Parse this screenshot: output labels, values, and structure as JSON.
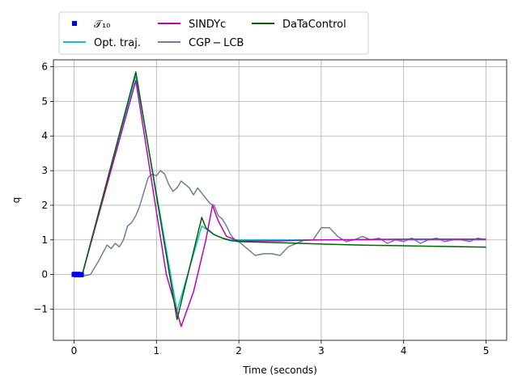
{
  "chart_data": {
    "type": "line",
    "title": "",
    "xlabel": "Time (seconds)",
    "ylabel": "q",
    "xlim": [
      -0.25,
      5.25
    ],
    "ylim": [
      -1.9,
      6.2
    ],
    "xticks": [
      0,
      1,
      2,
      3,
      4,
      5
    ],
    "xtick_labels": [
      "0",
      "1",
      "2",
      "3",
      "4",
      "5"
    ],
    "yticks": [
      -1,
      0,
      1,
      2,
      3,
      4,
      5,
      6
    ],
    "ytick_labels": [
      "−1",
      "0",
      "1",
      "2",
      "3",
      "4",
      "5",
      "6"
    ],
    "grid": true,
    "legend": {
      "placement": "top-left-outside",
      "ncol": 3
    },
    "series": [
      {
        "name": "𝒯₁₀",
        "kind": "markers",
        "color": "#0000ee",
        "x": [
          0.0,
          0.01,
          0.02,
          0.03,
          0.04,
          0.05,
          0.06,
          0.07,
          0.08,
          0.09
        ],
        "y": [
          0.0,
          0.01,
          0.0,
          -0.01,
          0.0,
          0.01,
          0.0,
          0.0,
          -0.01,
          0.0
        ]
      },
      {
        "name": "Opt. traj.",
        "kind": "line",
        "color": "#17becf",
        "x": [
          0.0,
          0.1,
          0.75,
          1.25,
          1.55,
          1.7,
          1.8,
          1.9,
          2.0,
          2.5,
          3.0,
          3.5,
          4.0,
          4.5,
          5.0
        ],
        "y": [
          0.0,
          0.0,
          5.75,
          -1.05,
          1.4,
          1.15,
          1.05,
          1.0,
          1.0,
          1.0,
          1.0,
          1.0,
          1.0,
          1.0,
          1.0
        ]
      },
      {
        "name": "SINDYc",
        "kind": "line",
        "color": "#bf00bf",
        "x": [
          0.0,
          0.1,
          0.75,
          1.12,
          1.3,
          1.45,
          1.6,
          1.68,
          1.75,
          1.85,
          2.0,
          2.5,
          3.0,
          4.0,
          5.0
        ],
        "y": [
          0.0,
          0.0,
          5.6,
          0.0,
          -1.5,
          -0.5,
          1.0,
          2.0,
          1.55,
          1.1,
          0.97,
          0.97,
          1.0,
          1.02,
          1.02
        ]
      },
      {
        "name": "CGP − LCB",
        "kind": "line",
        "color": "#708090",
        "x": [
          0.0,
          0.05,
          0.1,
          0.2,
          0.3,
          0.4,
          0.45,
          0.5,
          0.55,
          0.6,
          0.65,
          0.7,
          0.75,
          0.8,
          0.85,
          0.9,
          0.95,
          1.0,
          1.05,
          1.1,
          1.15,
          1.2,
          1.25,
          1.3,
          1.35,
          1.4,
          1.45,
          1.5,
          1.55,
          1.6,
          1.65,
          1.7,
          1.75,
          1.8,
          1.85,
          1.9,
          1.95,
          2.0,
          2.1,
          2.2,
          2.3,
          2.4,
          2.5,
          2.6,
          2.7,
          2.8,
          2.9,
          3.0,
          3.1,
          3.2,
          3.3,
          3.4,
          3.5,
          3.6,
          3.7,
          3.8,
          3.9,
          4.0,
          4.1,
          4.2,
          4.3,
          4.4,
          4.5,
          4.6,
          4.7,
          4.8,
          4.9,
          5.0
        ],
        "y": [
          0.0,
          -0.05,
          -0.05,
          0.0,
          0.4,
          0.85,
          0.75,
          0.9,
          0.8,
          1.0,
          1.4,
          1.5,
          1.7,
          2.0,
          2.4,
          2.8,
          2.9,
          2.85,
          3.0,
          2.9,
          2.6,
          2.4,
          2.5,
          2.7,
          2.6,
          2.5,
          2.3,
          2.5,
          2.35,
          2.2,
          2.05,
          2.0,
          1.7,
          1.6,
          1.4,
          1.15,
          1.0,
          0.95,
          0.75,
          0.55,
          0.6,
          0.6,
          0.55,
          0.8,
          0.9,
          1.0,
          1.0,
          1.35,
          1.35,
          1.1,
          0.95,
          1.0,
          1.1,
          1.0,
          1.05,
          0.9,
          1.0,
          0.95,
          1.05,
          0.9,
          1.0,
          1.05,
          0.95,
          1.0,
          1.0,
          0.95,
          1.05,
          1.0
        ]
      },
      {
        "name": "DaTaControl",
        "kind": "line",
        "color": "#006400",
        "x": [
          0.0,
          0.1,
          0.75,
          1.25,
          1.55,
          1.6,
          1.7,
          1.8,
          1.9,
          2.0,
          2.5,
          3.0,
          3.5,
          4.0,
          4.5,
          5.0
        ],
        "y": [
          0.0,
          0.0,
          5.85,
          -1.3,
          1.65,
          1.35,
          1.15,
          1.05,
          0.98,
          0.95,
          0.92,
          0.88,
          0.85,
          0.83,
          0.81,
          0.79
        ]
      }
    ]
  }
}
